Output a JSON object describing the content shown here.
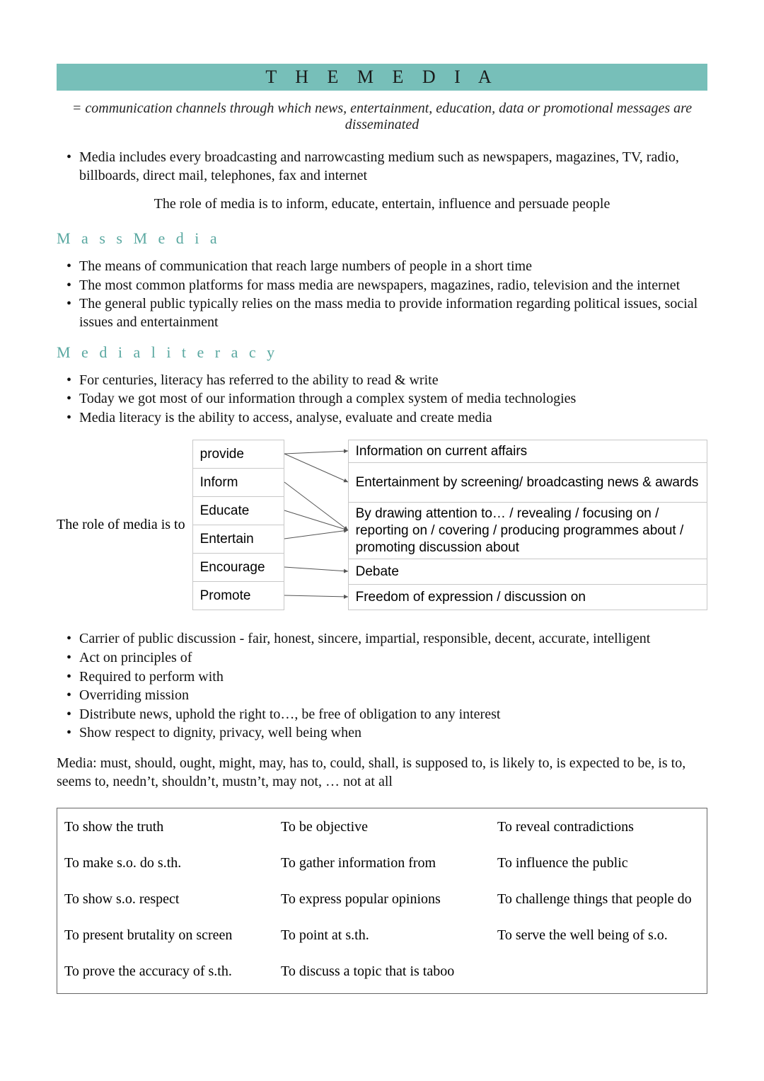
{
  "colors": {
    "title_bg": "#77bfb9",
    "heading": "#5aa8a1",
    "text": "#111111",
    "table_border": "#c8c8c8",
    "phrase_border": "#666666",
    "arrow": "#555555",
    "background": "#ffffff"
  },
  "title": "T H E    M E D I A",
  "definition": "= communication channels through which news, entertainment, education, data or promotional messages are disseminated",
  "intro_bullets": [
    "Media includes every broadcasting and narrowcasting medium such as newspapers, magazines, TV, radio, billboards, direct mail, telephones, fax and internet"
  ],
  "role_line": "The role of media is to inform, educate, entertain, influence and persuade people",
  "mass_media": {
    "heading": "M a s s   M e d i a",
    "bullets": [
      "The means of communication that reach large numbers of people in a short time",
      "The most common platforms for mass media are newspapers, magazines, radio, television and the internet",
      "The general public typically relies on the mass media to provide information regarding political issues, social issues and entertainment"
    ]
  },
  "literacy": {
    "heading": "M e d i a   l i t e r a c y",
    "bullets": [
      "For centuries, literacy has referred to the ability to read & write",
      "Today we got most of our information through a complex system of media technologies",
      "Media literacy is the ability to access, analyse, evaluate and create media"
    ]
  },
  "role_table": {
    "label": "The role of media is to",
    "left": [
      "provide",
      "Inform",
      "Educate",
      "Entertain",
      "Encourage",
      "Promote"
    ],
    "right": [
      "Information on current affairs",
      "Entertainment by screening/ broadcasting news & awards",
      "By drawing attention to… / revealing / focusing on / reporting on / covering / producing programmes about / promoting discussion about",
      "Debate",
      "Freedom of expression / discussion on"
    ],
    "left_row_h": 40,
    "right_row_h": [
      32,
      56,
      80,
      36,
      36
    ],
    "edges": [
      {
        "from": 0,
        "to": 0
      },
      {
        "from": 0,
        "to": 1
      },
      {
        "from": 1,
        "to": 2
      },
      {
        "from": 2,
        "to": 2
      },
      {
        "from": 3,
        "to": 2
      },
      {
        "from": 4,
        "to": 3
      },
      {
        "from": 5,
        "to": 4
      }
    ]
  },
  "principles_bullets": [
    "Carrier of public discussion - fair, honest, sincere, impartial, responsible, decent, accurate, intelligent",
    "Act on principles of",
    "Required to perform with",
    "Overriding mission",
    "Distribute news, uphold the right to…, be free of obligation to any interest",
    "Show respect to dignity, privacy, well being when"
  ],
  "modals_para": "Media: must, should, ought, might, may, has to, could, shall, is supposed to, is likely to, is expected to be, is to, seems to, needn’t, shouldn’t, mustn’t, may not, … not at all",
  "phrases": {
    "col1": [
      "To show the truth",
      "To make s.o. do s.th.",
      "To show s.o. respect",
      "To present brutality on screen",
      "To prove the accuracy of s.th."
    ],
    "col2": [
      "To be objective",
      "To gather information from",
      "To express popular opinions",
      "To point at s.th.",
      "To discuss a topic that is taboo"
    ],
    "col3": [
      "To reveal contradictions",
      "To influence the public",
      "To challenge things that people do",
      "To serve the well being of s.o."
    ]
  }
}
